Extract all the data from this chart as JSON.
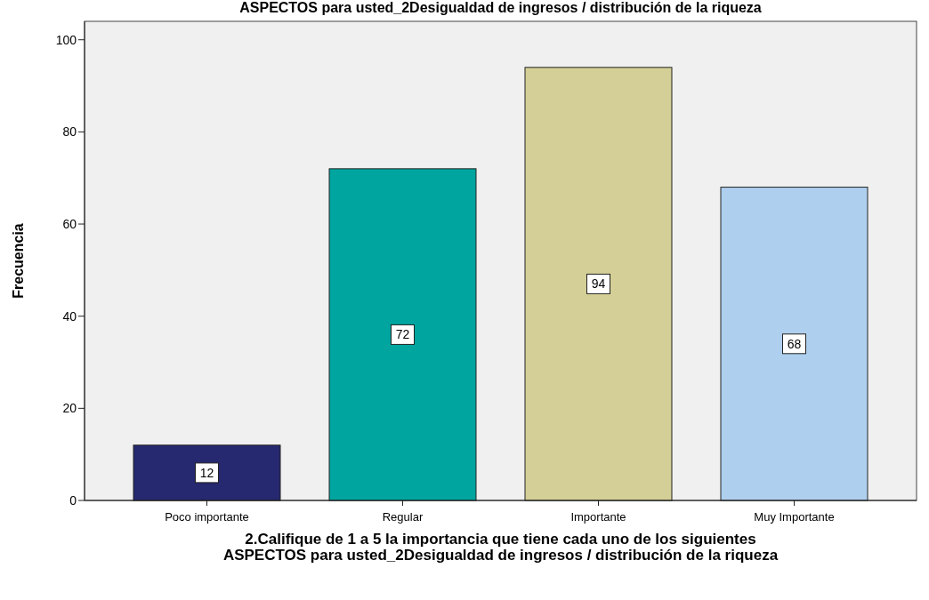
{
  "chart_data": {
    "type": "bar",
    "title": "ASPECTOS para usted_2Desigualdad de ingresos / distribución de la riqueza",
    "xlabel": "2.Califique de 1 a 5  la importancia que tiene cada uno de los siguientes ASPECTOS para usted_2Desigualdad de ingresos / distribución de la riqueza",
    "ylabel": "Frecuencia",
    "categories": [
      "Poco importante",
      "Regular",
      "Importante",
      "Muy Importante"
    ],
    "values": [
      12,
      72,
      94,
      68
    ],
    "colors": [
      "#262870",
      "#00a59f",
      "#d4cf96",
      "#aecfee"
    ],
    "ylim": [
      0,
      104
    ],
    "yticks": [
      0,
      20,
      40,
      60,
      80,
      100
    ],
    "data_labels": true
  }
}
